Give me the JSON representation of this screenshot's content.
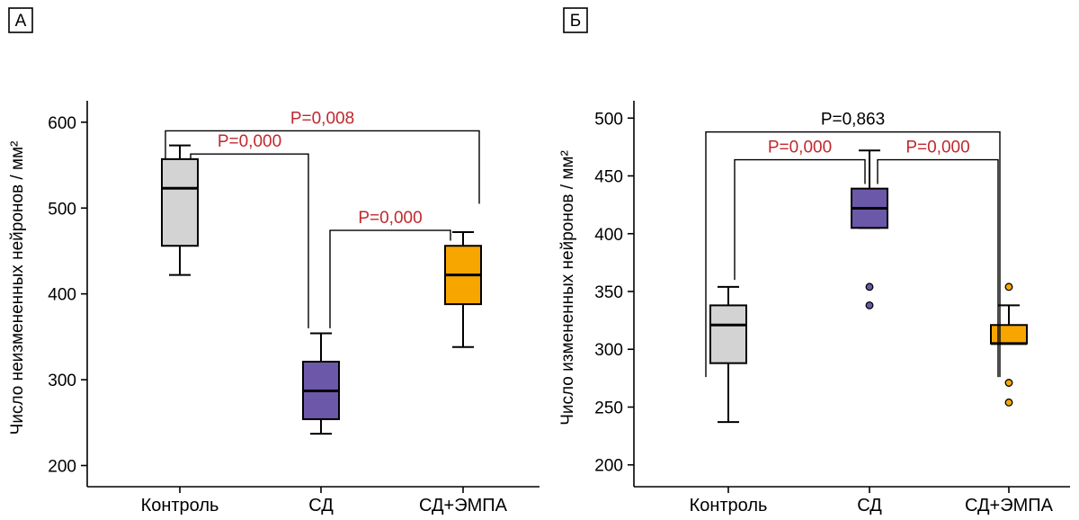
{
  "colors": {
    "control": "#d3d3d3",
    "sd": "#6c58a8",
    "sd_empa": "#f7a600",
    "significant_text": "#c0282e",
    "nonsignificant_text": "#000000"
  },
  "chart_data": [
    {
      "type": "box",
      "panel_label": "А",
      "ylabel": "Число неизмененных нейронов / мм²",
      "ylim": [
        190,
        625
      ],
      "yticks": [
        200,
        300,
        400,
        500,
        600
      ],
      "categories": [
        "Контроль",
        "СД",
        "СД+ЭМПА"
      ],
      "series": [
        {
          "category": "Контроль",
          "color_key": "control",
          "min": 422,
          "q1": 456,
          "median": 523,
          "q3": 557,
          "max": 573,
          "outliers": []
        },
        {
          "category": "СД",
          "color_key": "sd",
          "min": 237,
          "q1": 254,
          "median": 287,
          "q3": 321,
          "max": 354,
          "outliers": []
        },
        {
          "category": "СД+ЭМПА",
          "color_key": "sd_empa",
          "min": 338,
          "q1": 388,
          "median": 422,
          "q3": 456,
          "max": 472,
          "outliers": []
        }
      ],
      "comparisons": [
        {
          "from": 0,
          "to": 2,
          "label": "P=0,008",
          "significant": true,
          "bar": 590,
          "from_end": 557,
          "to_end": 505
        },
        {
          "from": 0,
          "to": 1,
          "label": "P=0,000",
          "significant": true,
          "bar": 563,
          "from_end": 557,
          "to_end": 360
        },
        {
          "from": 1,
          "to": 2,
          "label": "P=0,000",
          "significant": true,
          "bar": 474,
          "from_end": 360,
          "to_end": 462
        }
      ]
    },
    {
      "type": "box",
      "panel_label": "Б",
      "ylabel": "Число измененных нейронов / мм²",
      "ylim": [
        192,
        515
      ],
      "yticks": [
        200,
        250,
        300,
        350,
        400,
        450,
        500
      ],
      "categories": [
        "Контроль",
        "СД",
        "СД+ЭМПА"
      ],
      "series": [
        {
          "category": "Контроль",
          "color_key": "control",
          "min": 237,
          "q1": 288,
          "median": 321,
          "q3": 338,
          "max": 354,
          "outliers": []
        },
        {
          "category": "СД",
          "color_key": "sd",
          "min": 405,
          "q1": 405,
          "median": 422,
          "q3": 439,
          "max": 472,
          "outliers": [
            354,
            338
          ]
        },
        {
          "category": "СД+ЭМПА",
          "color_key": "sd_empa",
          "min": 305,
          "q1": 305,
          "median": 305,
          "q3": 321,
          "max": 338,
          "outliers": [
            354,
            271,
            254
          ]
        }
      ],
      "comparisons": [
        {
          "from": 0,
          "to": 2,
          "label": "P=0,863",
          "significant": false,
          "bar": 488,
          "from_end": 276,
          "to_end": 276
        },
        {
          "from": 0,
          "to": 1,
          "label": "P=0,000",
          "significant": true,
          "bar": 464,
          "from_end": 360,
          "to_end": 443
        },
        {
          "from": 1,
          "to": 2,
          "label": "P=0,000",
          "significant": true,
          "bar": 464,
          "from_end": 443,
          "to_end": 276
        }
      ]
    }
  ]
}
